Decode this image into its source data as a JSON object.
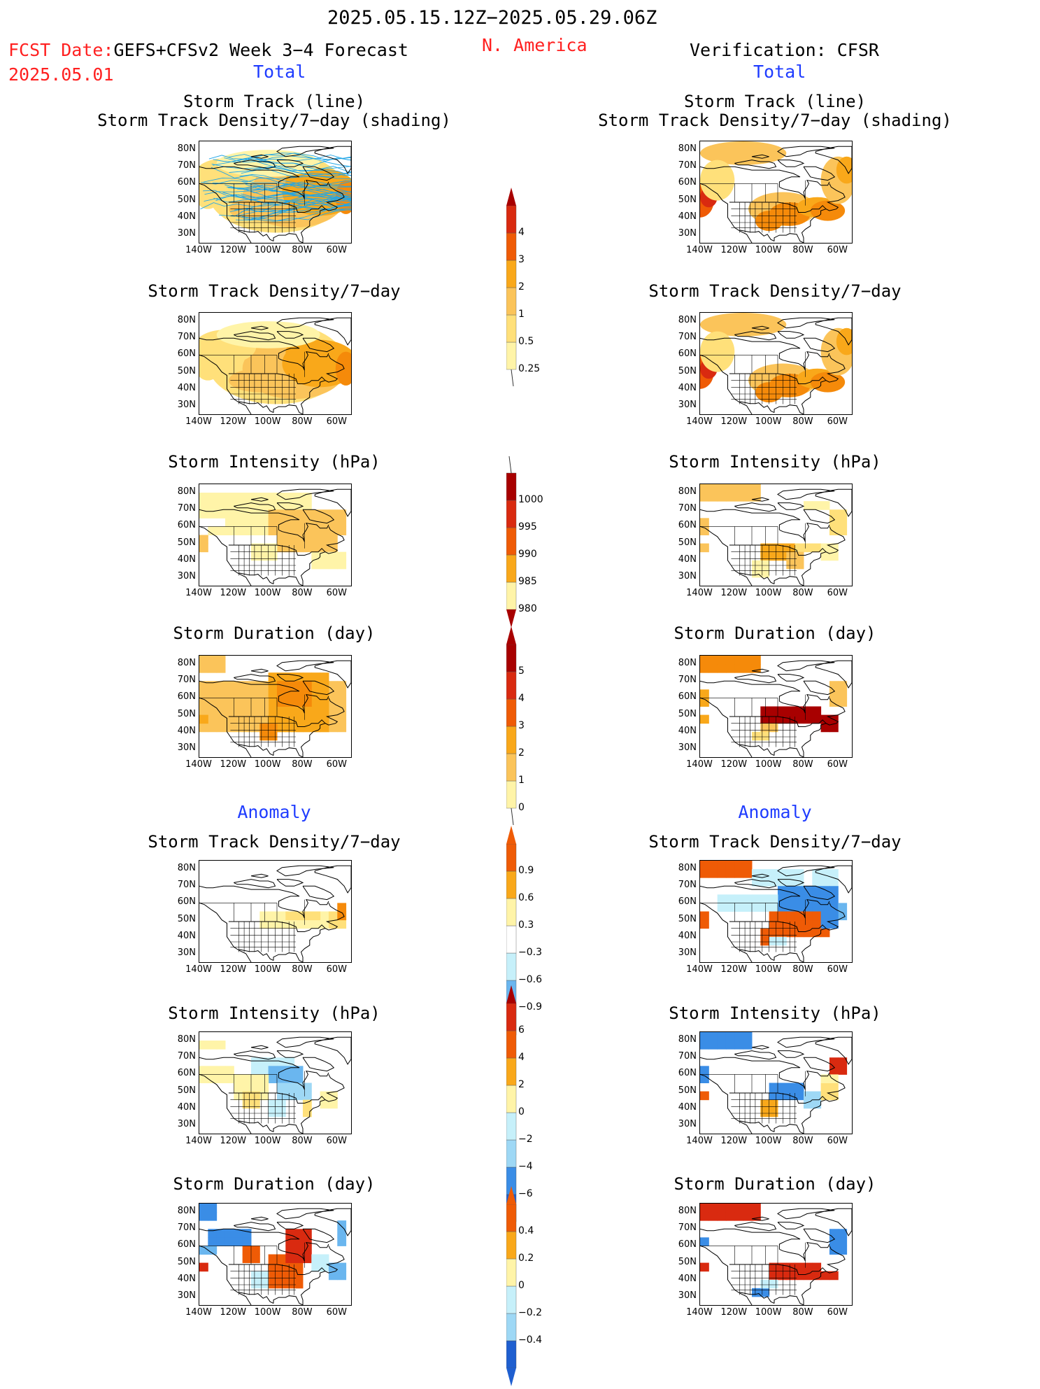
{
  "header": {
    "date_range": "2025.05.15.12Z−2025.05.29.06Z",
    "fcst_date_label": "FCST Date:",
    "fcst_date": "2025.05.01",
    "forecast_model": "GEFS+CFSv2 Week 3−4 Forecast",
    "region": "N. America",
    "verification": "Verification: CFSR",
    "left_total": "Total",
    "right_total": "Total",
    "left_anomaly": "Anomaly",
    "right_anomaly": "Anomaly"
  },
  "panel_titles": {
    "track_line": "Storm Track (line)",
    "track_shading": "Storm Track Density/7−day (shading)",
    "density": "Storm Track Density/7−day",
    "intensity": "Storm Intensity (hPa)",
    "duration": "Storm Duration (day)"
  },
  "axes": {
    "lat_labels": [
      "80N",
      "70N",
      "60N",
      "50N",
      "40N",
      "30N"
    ],
    "lon_labels": [
      "140W",
      "120W",
      "100W",
      "80W",
      "60W"
    ],
    "lat_range": [
      25,
      85
    ],
    "lon_range": [
      -140,
      -52
    ]
  },
  "colors": {
    "pos": [
      "#fff4a8",
      "#ffe07a",
      "#fbc45a",
      "#f9a81a",
      "#f58a0a",
      "#ef5b06",
      "#d92a10",
      "#a80000"
    ],
    "neg": [
      "#c6f0fa",
      "#9ed8f5",
      "#6ab6ef",
      "#3a8de6",
      "#1f5fd0"
    ],
    "track_line": "#22a6e6"
  },
  "colorbars": [
    {
      "id": "density",
      "labels": [
        "4",
        "3",
        "2",
        "1",
        "0.5",
        "0.25"
      ]
    },
    {
      "id": "intensity",
      "labels": [
        "1000",
        "995",
        "990",
        "985",
        "980"
      ]
    },
    {
      "id": "duration",
      "labels": [
        "5",
        "4",
        "3",
        "2",
        "1",
        "0"
      ]
    },
    {
      "id": "anom_density",
      "labels": [
        "0.9",
        "0.6",
        "0.3",
        "−0.3",
        "−0.6",
        "−0.9"
      ]
    },
    {
      "id": "anom_intensity",
      "labels": [
        "6",
        "4",
        "2",
        "0",
        "−2",
        "−4",
        "−6"
      ]
    },
    {
      "id": "anom_duration",
      "labels": [
        "0.4",
        "0.2",
        "0",
        "−0.2",
        "−0.4"
      ]
    }
  ]
}
